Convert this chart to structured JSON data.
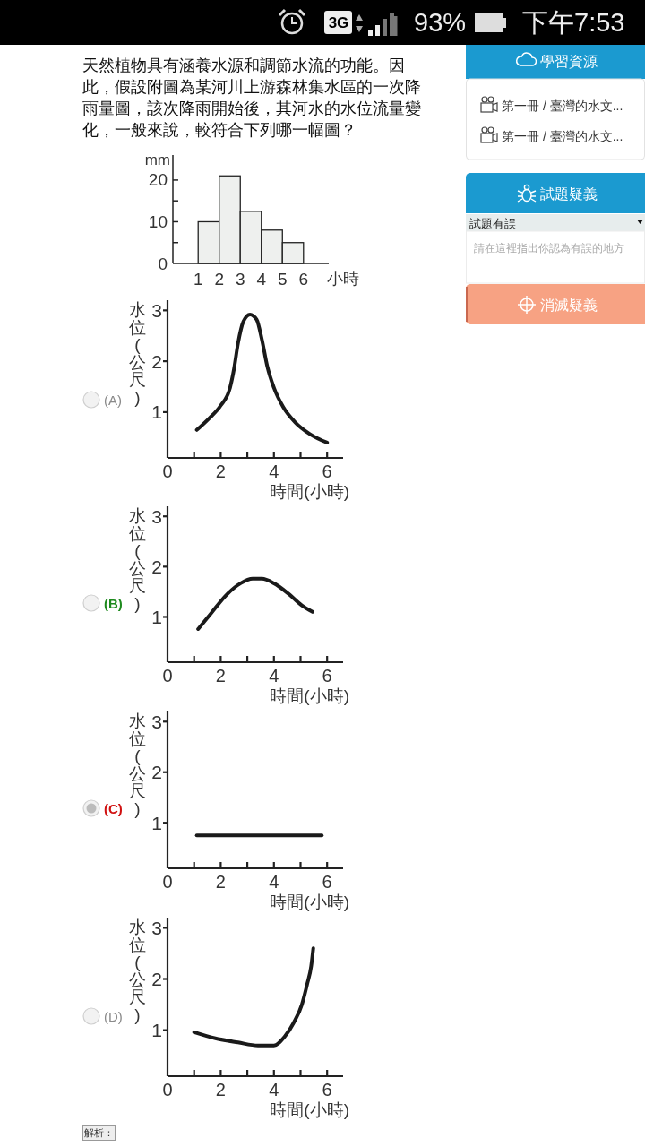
{
  "chart_data": [
    {
      "type": "other",
      "annotations": [
        "3G",
        "93%",
        "下午7:53"
      ]
    },
    {
      "type": "histogram",
      "title": "天然植物具有涵養水源和調節水流的功能。因此，假設附圖為某河川上游森林集水區的一次降雨量圖，該次降雨開始後，其河水的水位流量變化，一般來說，較符合下列哪一幅圖？",
      "xlabel": "小時",
      "ylabel": "mm",
      "bins": [
        1,
        2,
        3,
        4,
        5,
        6
      ],
      "values": [
        10,
        21,
        12.5,
        8,
        5
      ],
      "color": "#eef0ee",
      "xlim": [
        -0.2,
        7.2
      ],
      "xticks": [
        1,
        2,
        3,
        4,
        5,
        6
      ],
      "ylim": [
        0,
        26
      ],
      "yticks": [
        0,
        {
          "value": 5,
          "label": null
        },
        10,
        {
          "value": 15,
          "label": null
        },
        20
      ]
    },
    {
      "type": "line",
      "xlabel": "時間(小時)",
      "ylabel": "水位(公尺)",
      "series": [
        {
          "color": "#1a1a1a",
          "x": [
            1.1,
            1.55,
            2.0,
            2.35,
            2.5,
            2.65,
            2.85,
            3.1,
            3.35,
            3.55,
            3.75,
            4.0,
            4.35,
            4.8,
            5.35,
            6.0
          ],
          "values": [
            0.65,
            0.87,
            1.13,
            1.48,
            1.85,
            2.35,
            2.78,
            2.92,
            2.82,
            2.42,
            1.9,
            1.48,
            1.1,
            0.8,
            0.57,
            0.4
          ]
        }
      ],
      "xlim": [
        0,
        6.6
      ],
      "xticks": [
        0,
        {
          "value": 1,
          "label": null
        },
        2,
        {
          "value": 3,
          "label": null
        },
        4,
        {
          "value": 5,
          "label": null
        },
        6
      ],
      "ylim": [
        0.1,
        3.2
      ],
      "yticks": [
        1,
        2,
        3
      ],
      "annotations": [
        "(A)"
      ]
    },
    {
      "type": "line",
      "xlabel": "時間(小時)",
      "ylabel": "水位(公尺)",
      "series": [
        {
          "color": "#1a1a1a",
          "x": [
            1.15,
            1.65,
            2.2,
            2.75,
            3.2,
            3.55,
            4.0,
            4.55,
            5.05,
            5.45
          ],
          "values": [
            0.76,
            1.08,
            1.43,
            1.67,
            1.76,
            1.76,
            1.67,
            1.46,
            1.23,
            1.1
          ]
        }
      ],
      "xlim": [
        0,
        6.6
      ],
      "xticks": [
        0,
        {
          "value": 1,
          "label": null
        },
        2,
        {
          "value": 3,
          "label": null
        },
        4,
        {
          "value": 5,
          "label": null
        },
        6
      ],
      "ylim": [
        0.1,
        3.2
      ],
      "yticks": [
        1,
        2,
        3
      ],
      "annotations": [
        "(B)"
      ]
    },
    {
      "type": "line",
      "xlabel": "時間(小時)",
      "ylabel": "水位(公尺)",
      "series": [
        {
          "color": "#1a1a1a",
          "x": [
            1.1,
            5.8
          ],
          "values": [
            0.75,
            0.75
          ]
        }
      ],
      "xlim": [
        0,
        6.6
      ],
      "xticks": [
        0,
        {
          "value": 1,
          "label": null
        },
        2,
        {
          "value": 3,
          "label": null
        },
        4,
        {
          "value": 5,
          "label": null
        },
        6
      ],
      "ylim": [
        0.1,
        3.2
      ],
      "yticks": [
        1,
        2,
        3
      ],
      "annotations": [
        "(C)"
      ]
    },
    {
      "type": "line",
      "xlabel": "時間(小時)",
      "ylabel": "水位(公尺)",
      "series": [
        {
          "color": "#1a1a1a",
          "x": [
            1.0,
            1.8,
            2.65,
            3.4,
            4.0,
            4.4,
            4.75,
            5.05,
            5.25,
            5.4,
            5.48
          ],
          "values": [
            0.96,
            0.84,
            0.76,
            0.7,
            0.7,
            0.87,
            1.15,
            1.5,
            1.9,
            2.25,
            2.6
          ]
        }
      ],
      "xlim": [
        0,
        6.6
      ],
      "xticks": [
        0,
        {
          "value": 1,
          "label": null
        },
        2,
        {
          "value": 3,
          "label": null
        },
        4,
        {
          "value": 5,
          "label": null
        },
        6
      ],
      "ylim": [
        0.1,
        3.2
      ],
      "yticks": [
        1,
        2,
        3
      ],
      "annotations": [
        "(D)",
        "解析："
      ]
    },
    {
      "type": "other",
      "annotations": [
        "學習資源",
        "第一冊 / 臺灣的水文...",
        "第一冊 / 臺灣的水文...",
        "試題疑義",
        "試題有誤",
        "請在這裡指出你認為有誤的地方",
        "消滅疑義"
      ]
    }
  ]
}
